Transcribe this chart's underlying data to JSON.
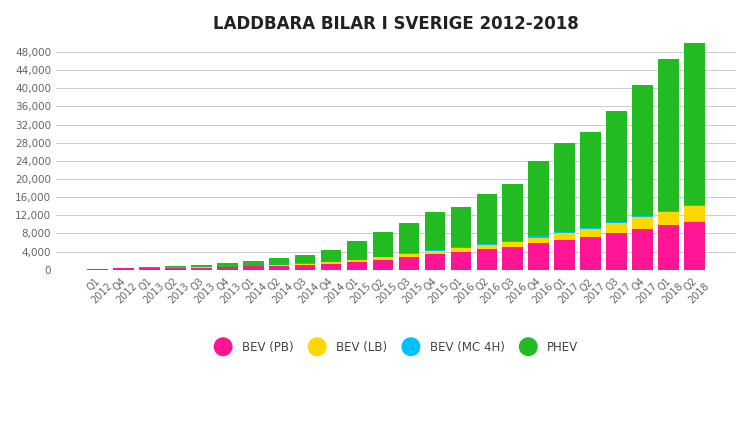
{
  "title": "LADDBARA BILAR I SVERIGE 2012-2018",
  "categories": [
    "Q1\n2012",
    "Q4\n2012",
    "Q1\n2013",
    "Q2\n2013",
    "Q3\n2013",
    "Q4\n2013",
    "Q1\n2014",
    "Q2\n2014",
    "Q3\n2014",
    "Q4\n2014",
    "Q1\n2015",
    "Q2\n2015",
    "Q3\n2015",
    "Q4\n2015",
    "Q1\n2016",
    "Q2\n2016",
    "Q3\n2016",
    "Q4\n2016",
    "Q1\n2017",
    "Q2\n2017",
    "Q3\n2017",
    "Q4\n2017",
    "Q1\n2018",
    "Q2\n2018"
  ],
  "bev_pb": [
    150,
    280,
    380,
    440,
    480,
    560,
    720,
    900,
    1100,
    1350,
    1700,
    2200,
    2800,
    3400,
    3900,
    4500,
    5000,
    5800,
    6500,
    7200,
    8200,
    9000,
    9800,
    10500
  ],
  "bev_lb": [
    10,
    20,
    30,
    40,
    50,
    70,
    90,
    140,
    220,
    380,
    450,
    550,
    650,
    750,
    850,
    950,
    1100,
    1300,
    1500,
    1800,
    2100,
    2600,
    3000,
    3600
  ],
  "bev_mc4h": [
    5,
    8,
    12,
    15,
    20,
    25,
    30,
    50,
    60,
    80,
    90,
    110,
    140,
    160,
    180,
    230,
    290,
    350,
    340,
    300,
    260,
    220,
    180,
    140
  ],
  "phev": [
    80,
    150,
    280,
    420,
    580,
    850,
    1100,
    1500,
    1950,
    2600,
    4000,
    5400,
    6800,
    8500,
    9000,
    11000,
    12500,
    16500,
    19500,
    21000,
    24500,
    29000,
    33500,
    38500
  ],
  "colors": {
    "bev_pb": "#FF1493",
    "bev_lb": "#FFD700",
    "bev_mc4h": "#00BFFF",
    "phev": "#22BB22"
  },
  "legend_labels": [
    "BEV (PB)",
    "BEV (LB)",
    "BEV (MC 4H)",
    "PHEV"
  ],
  "ylim": [
    0,
    50000
  ],
  "ytick_step": 4000,
  "background_color": "#FFFFFF",
  "grid_color": "#CCCCCC",
  "title_fontsize": 12
}
